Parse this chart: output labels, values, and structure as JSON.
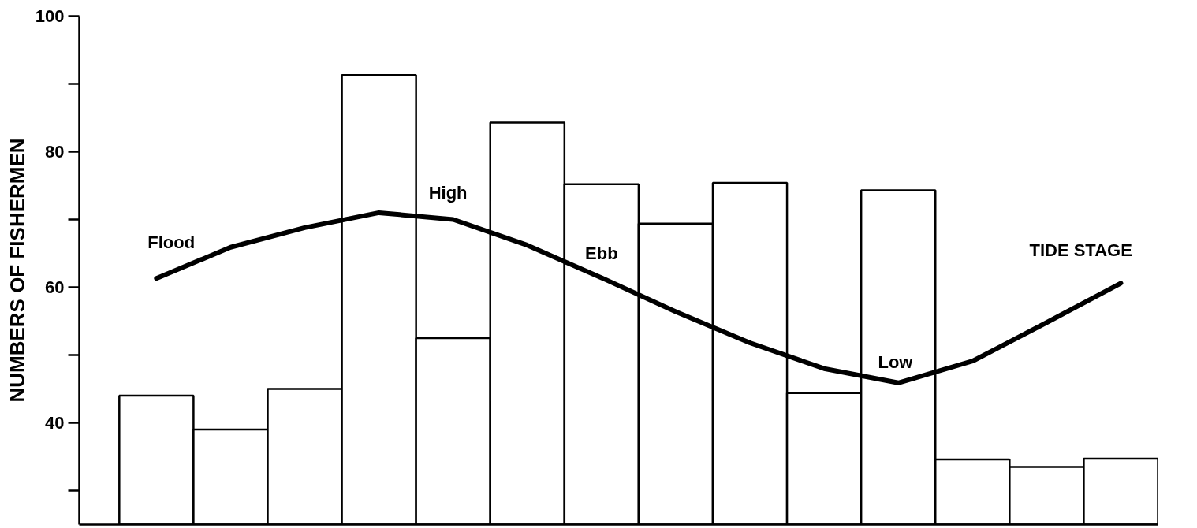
{
  "chart_data": {
    "type": "bar",
    "ylabel": "NUMBERS OF FISHERMEN",
    "categories": [
      null,
      null,
      null,
      null,
      null,
      null,
      null,
      null,
      null,
      null,
      null,
      null,
      null,
      null
    ],
    "ylim": [
      25,
      100
    ],
    "yticks": [
      {
        "value": 30,
        "label": null
      },
      40,
      {
        "value": 50,
        "label": null
      },
      60,
      {
        "value": 70,
        "label": null
      },
      80,
      {
        "value": 90,
        "label": null
      },
      100
    ],
    "grid": false,
    "series": [
      {
        "color": "#ffffff",
        "values": [
          44,
          39,
          45,
          91.3,
          52.5,
          84.3,
          75.2,
          69.4,
          75.4,
          44.4,
          74.3,
          34.6,
          33.5,
          34.7
        ]
      },
      {
        "type": "line",
        "color": "#000000",
        "values": [
          61.3,
          65.9,
          68.8,
          71.0,
          70.0,
          66.2,
          61.4,
          56.4,
          51.8,
          48.0,
          45.9,
          49.1,
          54.8,
          60.6
        ]
      }
    ],
    "annotations": [
      "Flood",
      "High",
      "Ebb",
      "Low",
      "TIDE STAGE"
    ]
  }
}
